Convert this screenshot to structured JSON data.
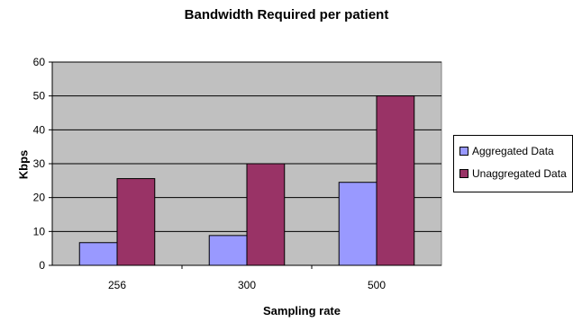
{
  "chart_data": {
    "type": "bar",
    "title": "Bandwidth Required per patient",
    "xlabel": "Sampling rate",
    "ylabel": "Kbps",
    "categories": [
      "256",
      "300",
      "500"
    ],
    "series": [
      {
        "name": "Aggregated Data",
        "values": [
          6.7,
          8.8,
          24.5
        ]
      },
      {
        "name": "Unaggregated Data",
        "values": [
          25.6,
          30,
          50
        ]
      }
    ],
    "ylim": [
      0,
      60
    ],
    "yticks": [
      0,
      10,
      20,
      30,
      40,
      50,
      60
    ],
    "grid": true,
    "legend_position": "right",
    "colors": {
      "plot_background": "#c0c0c0",
      "Aggregated Data": "#9999ff",
      "Unaggregated Data": "#993366"
    }
  }
}
